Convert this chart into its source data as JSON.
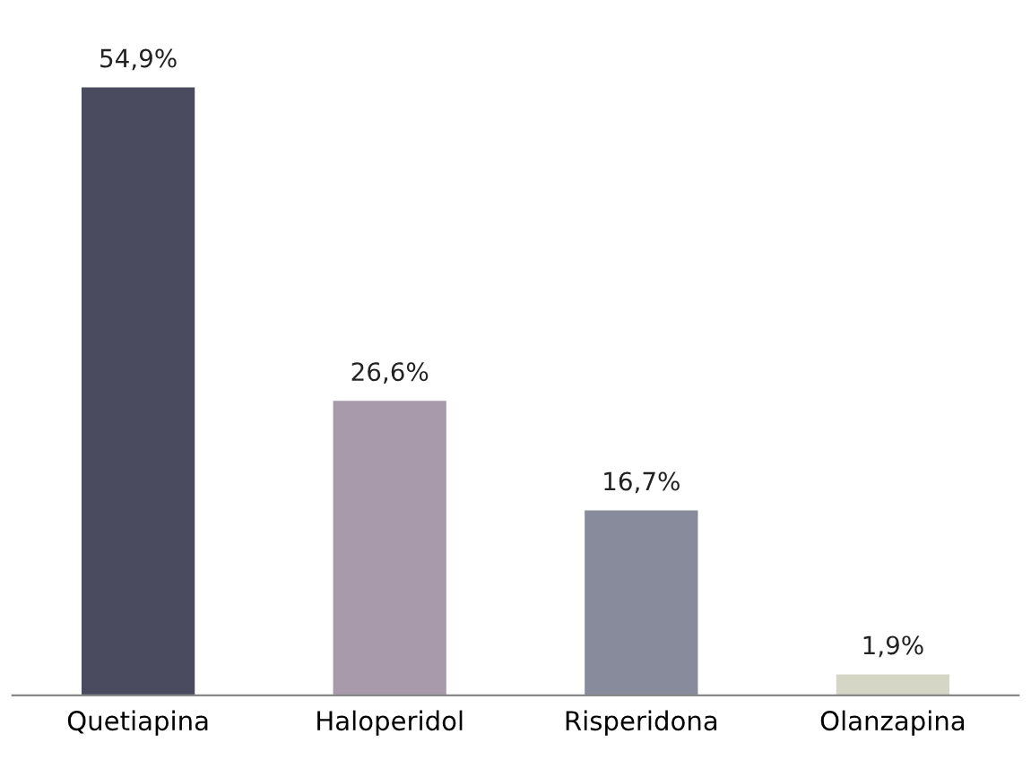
{
  "chart_data": {
    "type": "bar",
    "categories": [
      "Quetiapina",
      "Haloperidol",
      "Risperidona",
      "Olanzapina"
    ],
    "values": [
      54.9,
      26.6,
      16.7,
      1.9
    ],
    "colors": [
      "#4a4b5f",
      "#a89aab",
      "#888b9b",
      "#d5d6c6"
    ],
    "value_labels": [
      "54,9%",
      "26,6%",
      "16,7%",
      "1,9%"
    ],
    "grid": false,
    "legend": false
  }
}
